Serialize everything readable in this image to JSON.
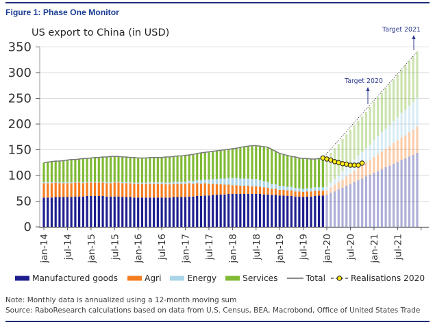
{
  "figure": {
    "title": "Figure 1: Phase One Monitor"
  },
  "chart_data": {
    "type": "bar",
    "stacked": true,
    "title": "US export to China (in USD)",
    "x_start": "jan-14",
    "x_end": "dec-21",
    "frequency": "monthly",
    "x_tick_labels": [
      "jan-14",
      "jul-14",
      "jan-15",
      "jul-15",
      "jan-16",
      "jul-16",
      "jan-17",
      "jul-17",
      "jan-18",
      "jul-18",
      "jan-19",
      "jul-19",
      "jan-20",
      "jul-20",
      "jan-21",
      "jul-21"
    ],
    "ylim": [
      0,
      350
    ],
    "ytick_step": 50,
    "grid": "horizontal",
    "historical_end_index": 71,
    "projection_start_index": 72,
    "series": [
      {
        "name": "Manufactured goods",
        "color": "#1e1e8f",
        "fade_opacity": 0.36,
        "values": [
          57,
          57,
          57,
          58,
          58,
          58,
          58,
          58,
          59,
          59,
          59,
          60,
          60,
          60,
          60,
          60,
          59,
          59,
          59,
          59,
          58,
          58,
          58,
          57,
          57,
          57,
          57,
          57,
          57,
          57,
          57,
          57,
          57,
          58,
          58,
          58,
          58,
          59,
          59,
          60,
          60,
          61,
          61,
          62,
          62,
          63,
          63,
          64,
          64,
          64,
          64,
          64,
          64,
          64,
          64,
          64,
          63,
          63,
          62,
          62,
          61,
          61,
          60,
          60,
          59,
          59,
          58,
          59,
          59,
          60,
          61,
          61,
          62,
          66,
          69,
          73,
          76,
          80,
          83,
          87,
          91,
          94,
          98,
          101,
          105,
          108,
          112,
          116,
          119,
          123,
          126,
          130,
          133,
          137,
          140,
          144
        ]
      },
      {
        "name": "Agri",
        "color": "#f57c1f",
        "fade_opacity": 0.38,
        "values": [
          28,
          28,
          28,
          28,
          27,
          27,
          27,
          27,
          27,
          27,
          26,
          26,
          26,
          26,
          26,
          26,
          26,
          26,
          27,
          27,
          27,
          27,
          27,
          27,
          27,
          27,
          27,
          27,
          27,
          27,
          27,
          26,
          26,
          26,
          26,
          26,
          26,
          26,
          25,
          25,
          24,
          24,
          23,
          22,
          21,
          20,
          19,
          18,
          17,
          17,
          16,
          16,
          16,
          15,
          15,
          14,
          14,
          13,
          12,
          12,
          11,
          11,
          11,
          11,
          10,
          10,
          10,
          10,
          10,
          10,
          9,
          9,
          9,
          11,
          13,
          14,
          16,
          18,
          20,
          22,
          24,
          25,
          27,
          29,
          31,
          33,
          35,
          36,
          38,
          40,
          42,
          44,
          45,
          47,
          49,
          51
        ]
      },
      {
        "name": "Energy",
        "color": "#a9d5e8",
        "fade_opacity": 0.45,
        "values": [
          2,
          2,
          2,
          2,
          2,
          2,
          2,
          2,
          2,
          2,
          2,
          2,
          2,
          2,
          2,
          2,
          2,
          2,
          2,
          2,
          2,
          2,
          2,
          2,
          2,
          2,
          2,
          3,
          3,
          3,
          3,
          3,
          3,
          4,
          4,
          4,
          4,
          5,
          5,
          6,
          7,
          7,
          8,
          9,
          10,
          11,
          12,
          13,
          14,
          14,
          14,
          14,
          14,
          14,
          14,
          13,
          12,
          11,
          10,
          9,
          8,
          8,
          7,
          7,
          7,
          6,
          6,
          6,
          6,
          7,
          7,
          7,
          7,
          9,
          11,
          13,
          16,
          18,
          20,
          22,
          24,
          26,
          28,
          30,
          33,
          35,
          37,
          39,
          41,
          43,
          45,
          48,
          50,
          52,
          54,
          56
        ]
      },
      {
        "name": "Services",
        "color": "#80ba35",
        "fade_opacity": 0.4,
        "values": [
          38,
          39,
          40,
          40,
          41,
          42,
          43,
          44,
          43,
          44,
          46,
          45,
          46,
          47,
          47,
          48,
          49,
          50,
          49,
          49,
          49,
          49,
          48,
          49,
          48,
          48,
          48,
          48,
          48,
          48,
          48,
          50,
          50,
          49,
          50,
          50,
          51,
          50,
          52,
          52,
          53,
          53,
          54,
          54,
          55,
          55,
          56,
          56,
          57,
          58,
          61,
          62,
          63,
          65,
          65,
          66,
          67,
          68,
          67,
          64,
          63,
          61,
          61,
          59,
          60,
          59,
          59,
          58,
          57,
          55,
          56,
          57,
          57,
          58,
          60,
          61,
          63,
          64,
          66,
          67,
          68,
          70,
          71,
          73,
          74,
          76,
          77,
          79,
          80,
          81,
          83,
          84,
          86,
          87,
          89,
          90
        ]
      }
    ],
    "total": {
      "name": "Total",
      "color": "#7a7a7a",
      "definition": "sum of stacked series, shown for historical months only"
    },
    "realisations": {
      "name": "Realisations 2020",
      "marker_color": "#ffe817",
      "start_index": 71,
      "values": [
        134,
        132,
        130,
        127,
        125,
        123,
        122,
        120,
        120,
        120,
        124
      ]
    },
    "projection_line": {
      "style": "dotted",
      "color": "#404040",
      "from_value": 134,
      "to_value": 341
    },
    "annotations": [
      {
        "text": "Target 2020"
      },
      {
        "text": "Target 2021"
      }
    ]
  },
  "legend": {
    "items": [
      {
        "type": "box",
        "color": "#1e1e8f",
        "label": "Manufactured goods"
      },
      {
        "type": "box",
        "color": "#f57c1f",
        "label": "Agri"
      },
      {
        "type": "box",
        "color": "#a9d5e8",
        "label": "Energy"
      },
      {
        "type": "box",
        "color": "#80ba35",
        "label": "Services"
      },
      {
        "type": "line",
        "color": "#8c8c8c",
        "label": "Total"
      },
      {
        "type": "marker",
        "color": "#ffe817",
        "label": "Realisations 2020"
      }
    ]
  },
  "notes": {
    "note": "Note: Monthly data is annualized using a 12-month moving sum",
    "source": "Source: RaboResearch calculations based on data from U.S. Census, BEA, Macrobond, Office of United States Trade"
  },
  "colors": {
    "accent_navy": "#1e2d78",
    "grid": "#d9d9d9",
    "axis": "#595959",
    "annotation": "#2b3990"
  }
}
